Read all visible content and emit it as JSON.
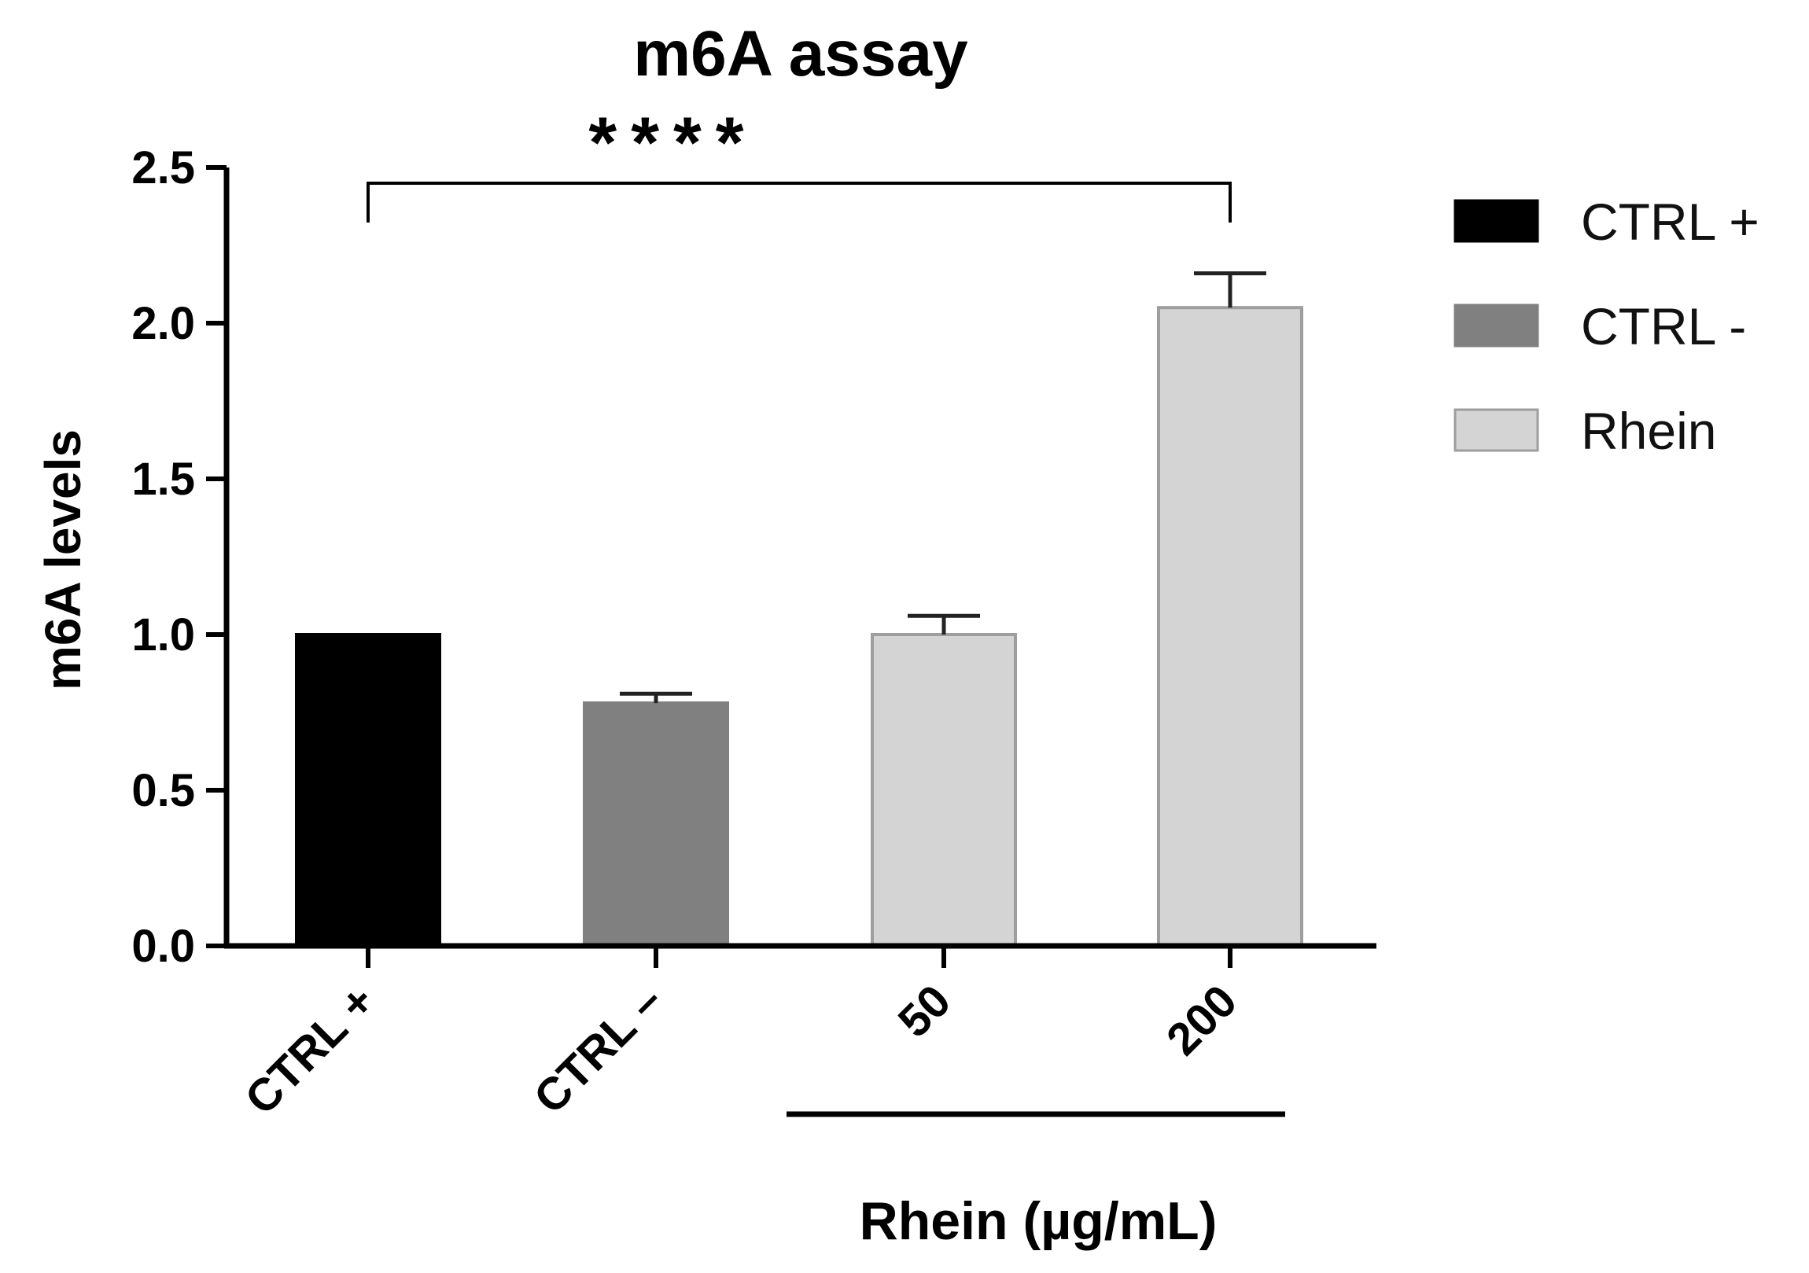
{
  "chart_data": {
    "type": "bar",
    "title": "m6A assay",
    "ylabel": "m6A levels",
    "ylim": [
      0,
      2.5
    ],
    "yticks": [
      "0.0",
      "0.5",
      "1.0",
      "1.5",
      "2.0",
      "2.5"
    ],
    "categories": [
      "CTRL +",
      "CTRL –",
      "50",
      "200"
    ],
    "values": [
      1.0,
      0.78,
      1.0,
      2.05
    ],
    "errors": [
      0,
      0.03,
      0.06,
      0.11
    ],
    "bar_groups": [
      "CTRL +",
      "CTRL -",
      "Rhein",
      "Rhein"
    ],
    "group_label": "Rhein (µg/mL)",
    "significance": {
      "label": "****",
      "from": "CTRL +",
      "to": "200"
    },
    "legend": {
      "placement": "right",
      "entries": [
        {
          "name": "CTRL +",
          "color": "#000000"
        },
        {
          "name": "CTRL -",
          "color": "#808080"
        },
        {
          "name": "Rhein",
          "color": "#d4d4d4"
        }
      ]
    }
  }
}
